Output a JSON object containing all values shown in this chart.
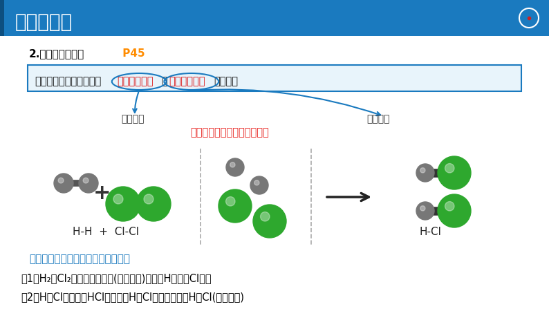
{
  "bg_color": "#ffffff",
  "header_bg": "#1a7abf",
  "header_text": "一、化学键",
  "header_text_color": "#ffffff",
  "sidebar_color": "#1a7abf",
  "section_title": "2.化学反应的本质",
  "section_title_color": "#000000",
  "page_ref": " P45",
  "page_ref_color": "#ff8c00",
  "box_text_prefix": "化学反应的过程本质上是",
  "box_text_red1": "旧化学键断裂",
  "box_text_mid": "和",
  "box_text_red2": "新化学键形成",
  "box_text_suffix": "的过程。",
  "box_bg": "#e8f4fb",
  "box_border": "#1a7abf",
  "label_left": "吸收能量",
  "label_right": "释放能量",
  "label_color": "#333333",
  "energy_text": "化学反应总伴随着能量的改变",
  "energy_color": "#e8201c",
  "formula_text": "H-H  +  Cl-Cl",
  "hcl_text": "H-Cl",
  "analysis_title": "用化学键的观点分析化学反应过程：",
  "analysis_title_color": "#1a7abf",
  "line1": "（1）H₂和Cl₂中的化学键断裂(旧化学键)，生成H原子和Cl原子",
  "line2": "（2）H和Cl结合生成HCl，形成了H和Cl之间的化学键H－Cl(新化学键)",
  "text_color": "#000000",
  "h2_color": "#555555",
  "cl2_color": "#3a9a3a",
  "bond_color": "#333333"
}
